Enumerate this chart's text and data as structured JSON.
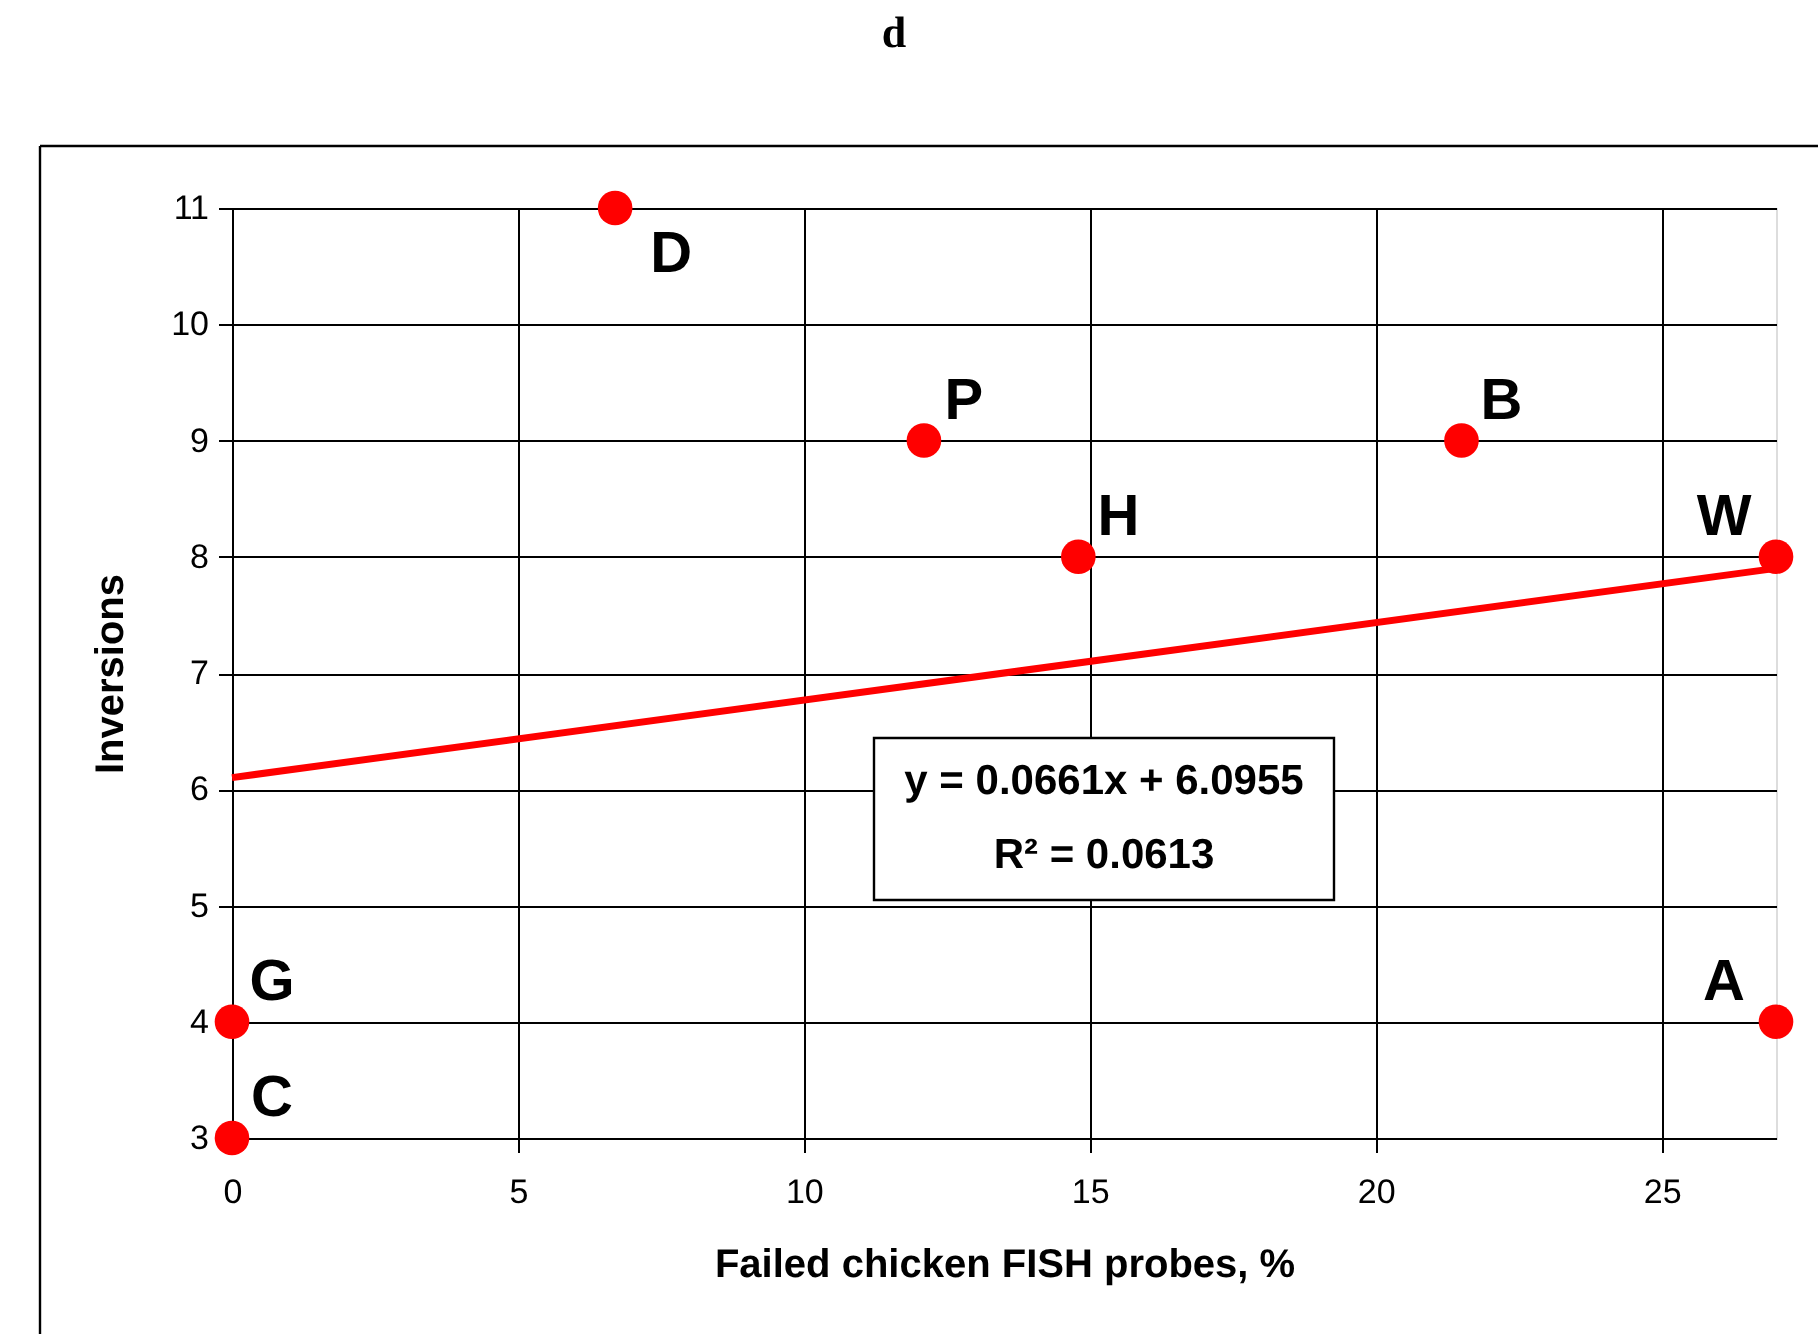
{
  "chart_data": {
    "type": "scatter",
    "title": "d",
    "xlabel": "Failed chicken FISH probes, %",
    "ylabel": "Inversions",
    "xlim": [
      0,
      27
    ],
    "ylim": [
      3,
      11
    ],
    "xticks": [
      0,
      5,
      10,
      15,
      20,
      25
    ],
    "yticks": [
      3,
      4,
      5,
      6,
      7,
      8,
      9,
      10,
      11
    ],
    "grid": true,
    "series": [
      {
        "type": "line",
        "color": "#ff0000",
        "x": [
          0,
          27
        ],
        "values": [
          6.1,
          7.9
        ]
      },
      {
        "color": "#ff0000",
        "marker": "circle",
        "x": [
          6.7,
          12.1,
          14.8,
          21.5,
          27,
          27,
          0,
          0
        ],
        "values": [
          11,
          9,
          8,
          9,
          8,
          4,
          4,
          3
        ]
      }
    ],
    "annotations": [
      {
        "text": "D",
        "x": 6.7,
        "y": 11
      },
      {
        "text": "P",
        "x": 12.1,
        "y": 9
      },
      {
        "text": "H",
        "x": 14.8,
        "y": 8
      },
      {
        "text": "B",
        "x": 21.5,
        "y": 9
      },
      {
        "text": "W",
        "x": 27,
        "y": 8
      },
      {
        "text": "A",
        "x": 27,
        "y": 4
      },
      {
        "text": "G",
        "x": 0,
        "y": 4
      },
      {
        "text": "C",
        "x": 0,
        "y": 3
      },
      "y = 0.0661x + 6.0955",
      "R² = 0.0613"
    ]
  }
}
